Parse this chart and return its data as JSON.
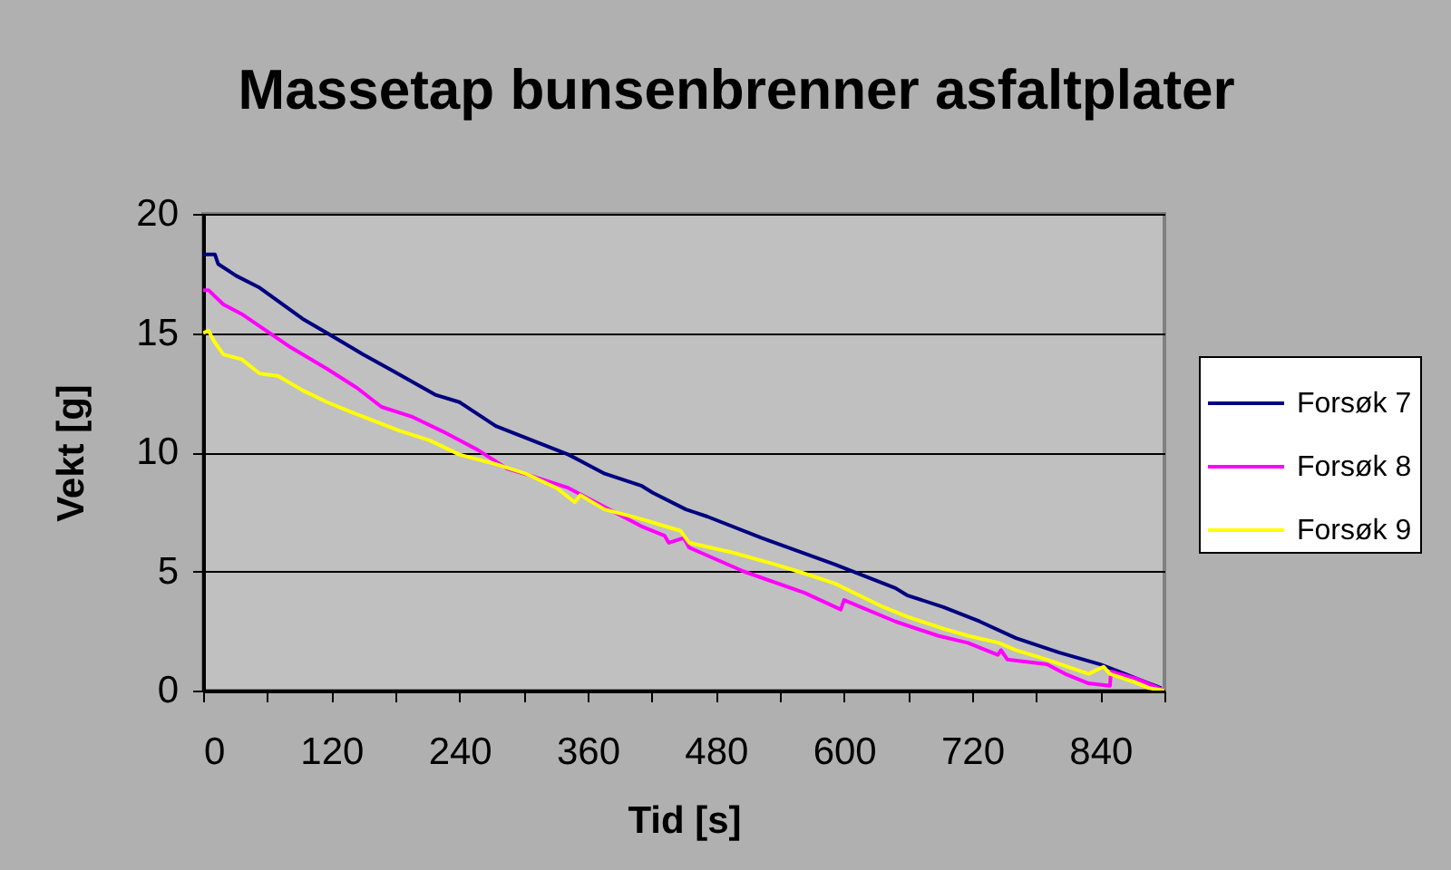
{
  "chart_data": {
    "type": "line",
    "title": "Massetap bunsenbrenner asfaltplater",
    "xlabel": "Tid [s]",
    "ylabel": "Vekt [g]",
    "xlim": [
      0,
      900
    ],
    "ylim": [
      0,
      20
    ],
    "xticks": [
      0,
      {
        "value": 60,
        "label": null
      },
      120,
      {
        "value": 180,
        "label": null
      },
      240,
      {
        "value": 300,
        "label": null
      },
      360,
      {
        "value": 420,
        "label": null
      },
      480,
      {
        "value": 540,
        "label": null
      },
      600,
      {
        "value": 660,
        "label": null
      },
      720,
      {
        "value": 780,
        "label": null
      },
      840,
      {
        "value": 900,
        "label": null
      }
    ],
    "yticks": [
      0,
      5,
      10,
      15,
      20
    ],
    "grid": "y",
    "legend": "right",
    "series": [
      {
        "name": "Forsøk 7",
        "color": "#000080",
        "x": [
          0,
          11,
          14,
          31,
          53,
          93,
          116,
          150,
          178,
          218,
          240,
          274,
          308,
          342,
          376,
          410,
          421,
          452,
          472,
          523,
          591,
          648,
          659,
          693,
          727,
          761,
          801,
          840,
          863,
          897
        ],
        "values": [
          18.3,
          18.3,
          17.9,
          17.4,
          16.9,
          15.6,
          15.0,
          14.1,
          13.4,
          12.4,
          12.1,
          11.1,
          10.5,
          9.9,
          9.1,
          8.6,
          8.3,
          7.6,
          7.3,
          6.4,
          5.3,
          4.3,
          4.0,
          3.5,
          2.9,
          2.2,
          1.6,
          1.1,
          0.7,
          0.1
        ]
      },
      {
        "name": "Forsøk 8",
        "color": "#ff00ff",
        "x": [
          0,
          5,
          19,
          36,
          59,
          82,
          116,
          144,
          167,
          195,
          223,
          257,
          285,
          308,
          342,
          376,
          410,
          432,
          436,
          450,
          455,
          506,
          563,
          597,
          600,
          648,
          688,
          716,
          744,
          747,
          753,
          790,
          807,
          829,
          849,
          850,
          874,
          900
        ],
        "values": [
          16.8,
          16.8,
          16.2,
          15.8,
          15.1,
          14.4,
          13.5,
          12.7,
          11.9,
          11.5,
          10.9,
          10.1,
          9.3,
          9.0,
          8.5,
          7.7,
          6.9,
          6.5,
          6.2,
          6.4,
          6.0,
          5.0,
          4.1,
          3.4,
          3.8,
          2.9,
          2.3,
          2.0,
          1.5,
          1.7,
          1.3,
          1.1,
          0.7,
          0.3,
          0.2,
          0.8,
          0.5,
          0.0
        ]
      },
      {
        "name": "Forsøk 9",
        "color": "#ffff00",
        "x": [
          0,
          5,
          11,
          19,
          36,
          53,
          70,
          93,
          116,
          138,
          161,
          184,
          212,
          240,
          274,
          302,
          331,
          348,
          353,
          376,
          410,
          432,
          447,
          455,
          495,
          535,
          557,
          591,
          637,
          659,
          693,
          716,
          745,
          761,
          790,
          829,
          843,
          849,
          869,
          886,
          900
        ],
        "values": [
          15.0,
          15.1,
          14.6,
          14.1,
          13.9,
          13.3,
          13.2,
          12.6,
          12.1,
          11.7,
          11.3,
          10.9,
          10.5,
          9.9,
          9.5,
          9.1,
          8.5,
          7.9,
          8.2,
          7.6,
          7.2,
          6.9,
          6.7,
          6.2,
          5.8,
          5.3,
          5.0,
          4.5,
          3.5,
          3.1,
          2.6,
          2.3,
          2.0,
          1.7,
          1.3,
          0.7,
          1.0,
          0.7,
          0.4,
          0.1,
          0.0
        ]
      }
    ]
  }
}
